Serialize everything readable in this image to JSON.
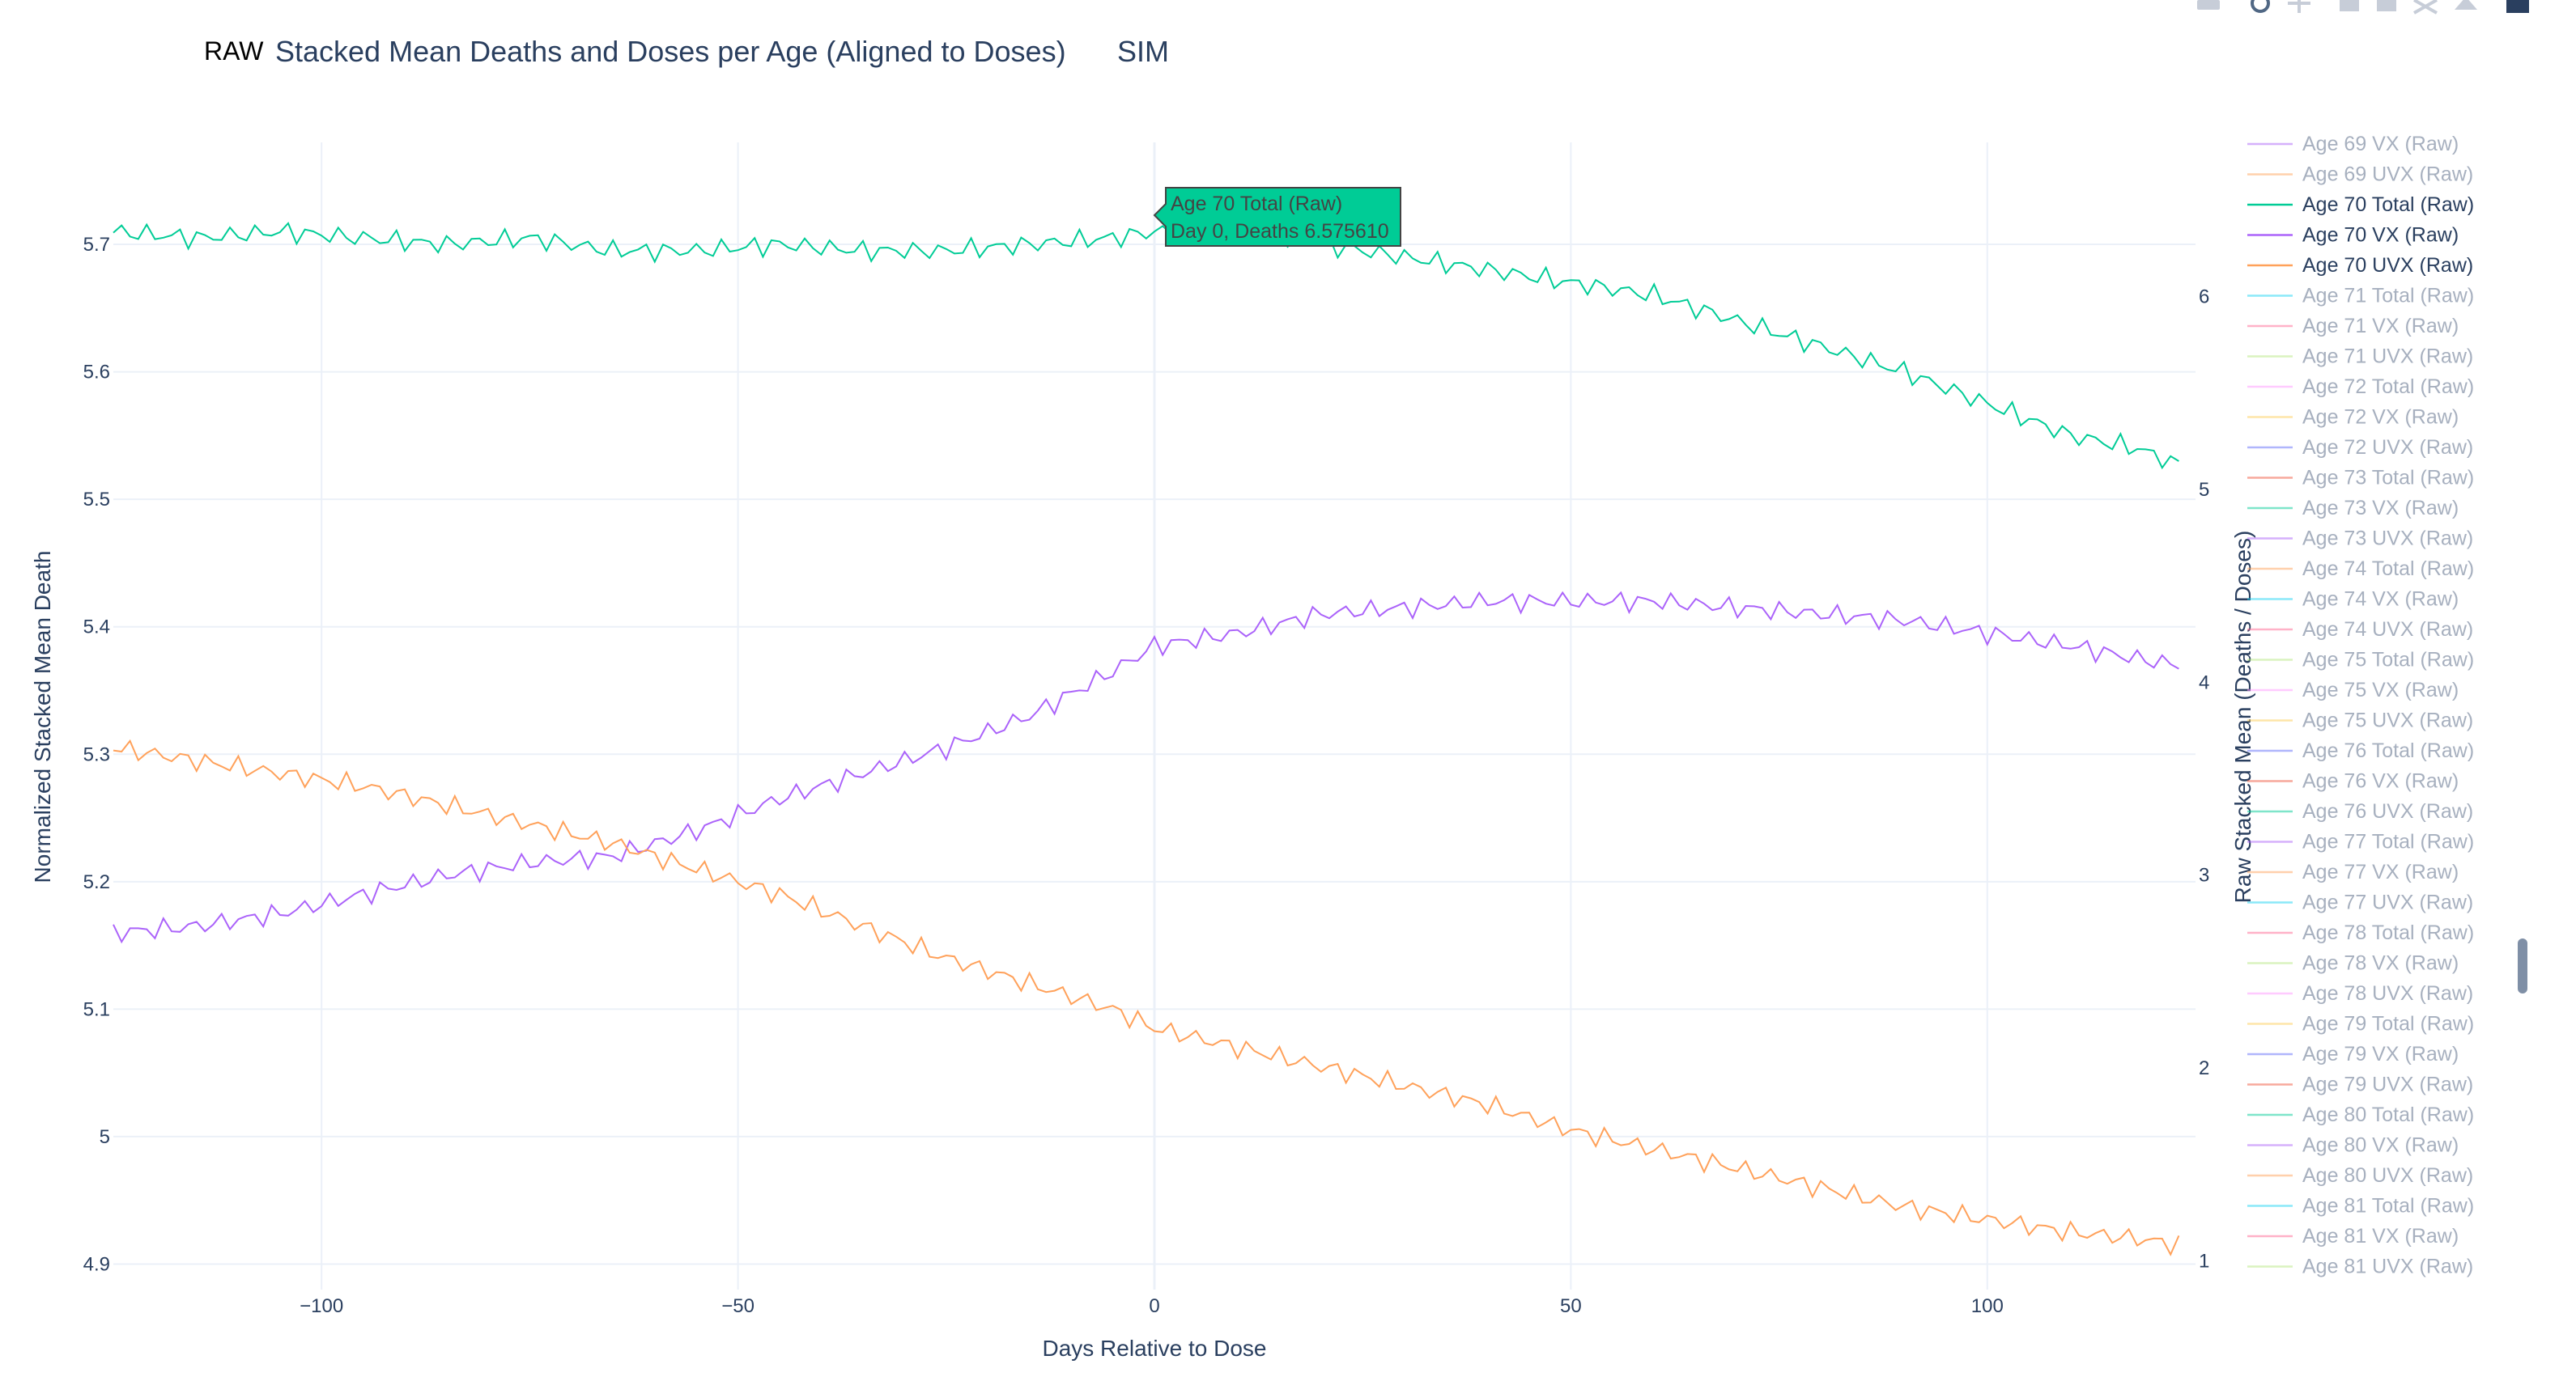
{
  "header": {
    "raw_label": "RAW",
    "title": "Stacked Mean Deaths and Doses per Age (Aligned to Doses)",
    "sim_label": "SIM"
  },
  "colors": {
    "total": "#00cc96",
    "vx": "#ab63fa",
    "uvx": "#ffa15a",
    "grid": "#ebf0f8",
    "text": "#2a3f5f",
    "legend_inactive": "#a7b0bf"
  },
  "modebar": {
    "icons": [
      "camera-icon",
      "zoom-icon",
      "pan-icon",
      "zoom-in-icon",
      "zoom-out-icon",
      "autoscale-icon",
      "reset-axes-icon",
      "plotly-logo-icon"
    ]
  },
  "hover": {
    "line1": "Age 70 Total (Raw)",
    "line2": "Day 0, Deaths 6.575610"
  },
  "legend": {
    "items": [
      {
        "label": "Age 69 VX (Raw)",
        "active": false,
        "color": "#ab63fa"
      },
      {
        "label": "Age 69 UVX (Raw)",
        "active": false,
        "color": "#ffa15a"
      },
      {
        "label": "Age 70 Total (Raw)",
        "active": true,
        "color": "#00cc96"
      },
      {
        "label": "Age 70 VX (Raw)",
        "active": true,
        "color": "#ab63fa"
      },
      {
        "label": "Age 70 UVX (Raw)",
        "active": true,
        "color": "#ffa15a"
      },
      {
        "label": "Age 71 Total (Raw)",
        "active": false,
        "color": "#19d3f3"
      },
      {
        "label": "Age 71 VX (Raw)",
        "active": false,
        "color": "#ff6692"
      },
      {
        "label": "Age 71 UVX (Raw)",
        "active": false,
        "color": "#b6e880"
      },
      {
        "label": "Age 72 Total (Raw)",
        "active": false,
        "color": "#ff97ff"
      },
      {
        "label": "Age 72 VX (Raw)",
        "active": false,
        "color": "#fecb52"
      },
      {
        "label": "Age 72 UVX (Raw)",
        "active": false,
        "color": "#636efa"
      },
      {
        "label": "Age 73 Total (Raw)",
        "active": false,
        "color": "#ef553b"
      },
      {
        "label": "Age 73 VX (Raw)",
        "active": false,
        "color": "#00cc96"
      },
      {
        "label": "Age 73 UVX (Raw)",
        "active": false,
        "color": "#ab63fa"
      },
      {
        "label": "Age 74 Total (Raw)",
        "active": false,
        "color": "#ffa15a"
      },
      {
        "label": "Age 74 VX (Raw)",
        "active": false,
        "color": "#19d3f3"
      },
      {
        "label": "Age 74 UVX (Raw)",
        "active": false,
        "color": "#ff6692"
      },
      {
        "label": "Age 75 Total (Raw)",
        "active": false,
        "color": "#b6e880"
      },
      {
        "label": "Age 75 VX (Raw)",
        "active": false,
        "color": "#ff97ff"
      },
      {
        "label": "Age 75 UVX (Raw)",
        "active": false,
        "color": "#fecb52"
      },
      {
        "label": "Age 76 Total (Raw)",
        "active": false,
        "color": "#636efa"
      },
      {
        "label": "Age 76 VX (Raw)",
        "active": false,
        "color": "#ef553b"
      },
      {
        "label": "Age 76 UVX (Raw)",
        "active": false,
        "color": "#00cc96"
      },
      {
        "label": "Age 77 Total (Raw)",
        "active": false,
        "color": "#ab63fa"
      },
      {
        "label": "Age 77 VX (Raw)",
        "active": false,
        "color": "#ffa15a"
      },
      {
        "label": "Age 77 UVX (Raw)",
        "active": false,
        "color": "#19d3f3"
      },
      {
        "label": "Age 78 Total (Raw)",
        "active": false,
        "color": "#ff6692"
      },
      {
        "label": "Age 78 VX (Raw)",
        "active": false,
        "color": "#b6e880"
      },
      {
        "label": "Age 78 UVX (Raw)",
        "active": false,
        "color": "#ff97ff"
      },
      {
        "label": "Age 79 Total (Raw)",
        "active": false,
        "color": "#fecb52"
      },
      {
        "label": "Age 79 VX (Raw)",
        "active": false,
        "color": "#636efa"
      },
      {
        "label": "Age 79 UVX (Raw)",
        "active": false,
        "color": "#ef553b"
      },
      {
        "label": "Age 80 Total (Raw)",
        "active": false,
        "color": "#00cc96"
      },
      {
        "label": "Age 80 VX (Raw)",
        "active": false,
        "color": "#ab63fa"
      },
      {
        "label": "Age 80 UVX (Raw)",
        "active": false,
        "color": "#ffa15a"
      },
      {
        "label": "Age 81 Total (Raw)",
        "active": false,
        "color": "#19d3f3"
      },
      {
        "label": "Age 81 VX (Raw)",
        "active": false,
        "color": "#ff6692"
      },
      {
        "label": "Age 81 UVX (Raw)",
        "active": false,
        "color": "#b6e880"
      }
    ]
  },
  "chart_data": {
    "type": "line",
    "title": "Stacked Mean Deaths and Doses per Age (Aligned to Doses)",
    "xlabel": "Days Relative to Dose",
    "ylabel": "Normalized Stacked Mean Death",
    "y2label": "Raw Stacked Mean (Deaths / Doses)",
    "xlim": [
      -125,
      125
    ],
    "ylim": [
      4.88,
      5.78
    ],
    "y2lim": [
      0.85,
      6.8
    ],
    "x_ticks": [
      -100,
      -50,
      0,
      50,
      100
    ],
    "x_tick_labels": [
      "−100",
      "−50",
      "0",
      "50",
      "100"
    ],
    "y_ticks": [
      4.9,
      5,
      5.1,
      5.2,
      5.3,
      5.4,
      5.5,
      5.6,
      5.7
    ],
    "y_tick_labels": [
      "4.9",
      "5",
      "5.1",
      "5.2",
      "5.3",
      "5.4",
      "5.5",
      "5.6",
      "5.7"
    ],
    "y2_ticks": [
      1,
      2,
      3,
      4,
      5,
      6
    ],
    "y2_tick_labels": [
      "1",
      "2",
      "3",
      "4",
      "5",
      "6"
    ],
    "grid": true,
    "legend_position": "right",
    "series": [
      {
        "name": "Age 70 Total (Raw)",
        "color": "#00cc96",
        "x": [
          -125,
          -115,
          -105,
          -95,
          -85,
          -75,
          -65,
          -55,
          -45,
          -35,
          -25,
          -15,
          -5,
          0,
          10,
          20,
          30,
          40,
          50,
          60,
          70,
          80,
          90,
          100,
          110,
          118,
          123
        ],
        "y": [
          5.71,
          5.705,
          5.71,
          5.705,
          5.7,
          5.705,
          5.695,
          5.695,
          5.7,
          5.695,
          5.695,
          5.7,
          5.705,
          5.71,
          5.71,
          5.7,
          5.69,
          5.68,
          5.67,
          5.66,
          5.64,
          5.62,
          5.6,
          5.575,
          5.55,
          5.54,
          5.527
        ]
      },
      {
        "name": "Age 70 VX (Raw)",
        "color": "#ab63fa",
        "x": [
          -125,
          -115,
          -105,
          -95,
          -85,
          -75,
          -65,
          -55,
          -45,
          -35,
          -25,
          -15,
          -5,
          0,
          10,
          20,
          30,
          40,
          50,
          60,
          70,
          80,
          90,
          100,
          110,
          118,
          123
        ],
        "y": [
          5.16,
          5.165,
          5.175,
          5.19,
          5.205,
          5.215,
          5.22,
          5.24,
          5.265,
          5.285,
          5.305,
          5.33,
          5.365,
          5.385,
          5.395,
          5.41,
          5.415,
          5.42,
          5.42,
          5.42,
          5.415,
          5.41,
          5.405,
          5.395,
          5.385,
          5.375,
          5.37
        ]
      },
      {
        "name": "Age 70 UVX (Raw)",
        "color": "#ffa15a",
        "x": [
          -125,
          -115,
          -105,
          -95,
          -85,
          -75,
          -65,
          -55,
          -45,
          -35,
          -25,
          -15,
          -5,
          0,
          10,
          20,
          30,
          40,
          50,
          60,
          70,
          80,
          90,
          100,
          110,
          118,
          123
        ],
        "y": [
          5.305,
          5.295,
          5.285,
          5.275,
          5.26,
          5.245,
          5.23,
          5.21,
          5.19,
          5.165,
          5.14,
          5.12,
          5.1,
          5.085,
          5.07,
          5.055,
          5.04,
          5.025,
          5.005,
          4.99,
          4.975,
          4.96,
          4.945,
          4.935,
          4.925,
          4.92,
          4.915
        ]
      }
    ]
  }
}
